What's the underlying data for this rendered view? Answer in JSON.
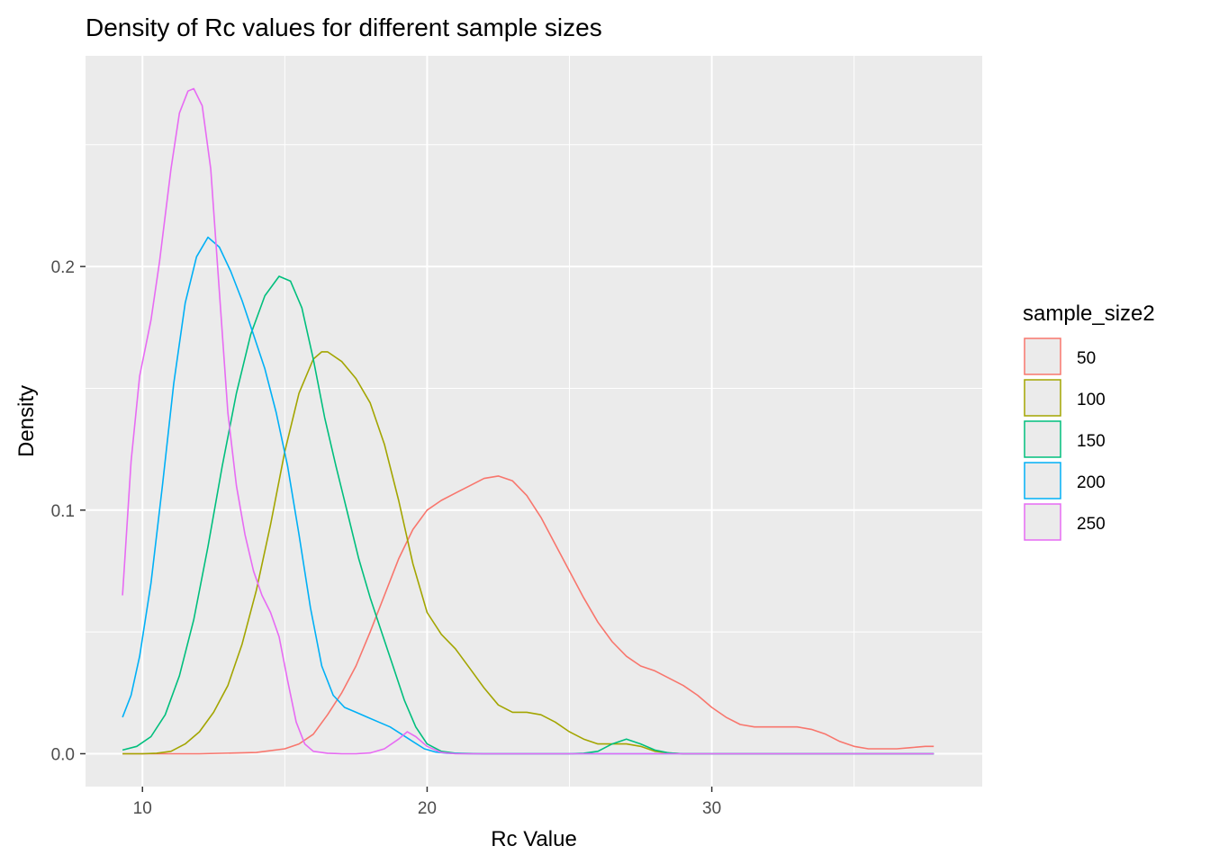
{
  "chart_data": {
    "type": "line",
    "title": "Density of Rc values for different sample sizes",
    "xlabel": "Rc Value",
    "ylabel": "Density",
    "xlim": [
      8.0,
      39.5
    ],
    "ylim": [
      -0.0135,
      0.2865
    ],
    "x_ticks": [
      10,
      20,
      30
    ],
    "x_tick_labels": [
      "10",
      "20",
      "30"
    ],
    "x_minor_ticks": [
      15,
      25,
      35
    ],
    "y_ticks": [
      0.0,
      0.1,
      0.2
    ],
    "y_tick_labels": [
      "0.0",
      "0.1",
      "0.2"
    ],
    "y_minor_ticks": [
      0.05,
      0.15,
      0.25
    ],
    "grid": true,
    "background": "#ebebeb",
    "legend": {
      "title": "sample_size2",
      "position": "right"
    },
    "series": [
      {
        "name": "50",
        "color": "#F8766D",
        "points": [
          [
            9.3,
            0
          ],
          [
            12,
            0
          ],
          [
            14,
            0.0005
          ],
          [
            15,
            0.002
          ],
          [
            15.5,
            0.004
          ],
          [
            16,
            0.008
          ],
          [
            16.5,
            0.016
          ],
          [
            17,
            0.025
          ],
          [
            17.5,
            0.036
          ],
          [
            18,
            0.05
          ],
          [
            18.5,
            0.065
          ],
          [
            19,
            0.08
          ],
          [
            19.5,
            0.092
          ],
          [
            20,
            0.1
          ],
          [
            20.5,
            0.104
          ],
          [
            21,
            0.107
          ],
          [
            21.5,
            0.11
          ],
          [
            22,
            0.113
          ],
          [
            22.5,
            0.114
          ],
          [
            23,
            0.112
          ],
          [
            23.5,
            0.106
          ],
          [
            24,
            0.097
          ],
          [
            24.5,
            0.086
          ],
          [
            25,
            0.075
          ],
          [
            25.5,
            0.064
          ],
          [
            26,
            0.054
          ],
          [
            26.5,
            0.046
          ],
          [
            27,
            0.04
          ],
          [
            27.5,
            0.036
          ],
          [
            28,
            0.034
          ],
          [
            28.5,
            0.031
          ],
          [
            29,
            0.028
          ],
          [
            29.5,
            0.024
          ],
          [
            30,
            0.019
          ],
          [
            30.5,
            0.015
          ],
          [
            31,
            0.012
          ],
          [
            31.5,
            0.011
          ],
          [
            32,
            0.011
          ],
          [
            32.5,
            0.011
          ],
          [
            33,
            0.011
          ],
          [
            33.5,
            0.01
          ],
          [
            34,
            0.008
          ],
          [
            34.5,
            0.005
          ],
          [
            35,
            0.003
          ],
          [
            35.5,
            0.002
          ],
          [
            36,
            0.002
          ],
          [
            36.5,
            0.002
          ],
          [
            37,
            0.0025
          ],
          [
            37.5,
            0.003
          ],
          [
            37.8,
            0.003
          ]
        ]
      },
      {
        "name": "100",
        "color": "#A3A500",
        "points": [
          [
            9.3,
            0
          ],
          [
            10,
            0
          ],
          [
            10.5,
            0.0002
          ],
          [
            11,
            0.001
          ],
          [
            11.5,
            0.004
          ],
          [
            12,
            0.009
          ],
          [
            12.5,
            0.017
          ],
          [
            13,
            0.028
          ],
          [
            13.5,
            0.045
          ],
          [
            14,
            0.067
          ],
          [
            14.5,
            0.094
          ],
          [
            15,
            0.124
          ],
          [
            15.5,
            0.148
          ],
          [
            16,
            0.162
          ],
          [
            16.3,
            0.165
          ],
          [
            16.5,
            0.165
          ],
          [
            17,
            0.161
          ],
          [
            17.5,
            0.154
          ],
          [
            18,
            0.144
          ],
          [
            18.5,
            0.127
          ],
          [
            19,
            0.104
          ],
          [
            19.5,
            0.078
          ],
          [
            20,
            0.058
          ],
          [
            20.5,
            0.049
          ],
          [
            21,
            0.043
          ],
          [
            21.5,
            0.035
          ],
          [
            22,
            0.027
          ],
          [
            22.5,
            0.02
          ],
          [
            23,
            0.017
          ],
          [
            23.5,
            0.017
          ],
          [
            24,
            0.016
          ],
          [
            24.5,
            0.013
          ],
          [
            25,
            0.009
          ],
          [
            25.5,
            0.006
          ],
          [
            26,
            0.004
          ],
          [
            26.5,
            0.004
          ],
          [
            27,
            0.004
          ],
          [
            27.5,
            0.003
          ],
          [
            28,
            0.001
          ],
          [
            28.5,
            0.0003
          ],
          [
            29,
            0
          ],
          [
            30,
            0
          ],
          [
            37.8,
            0
          ]
        ]
      },
      {
        "name": "150",
        "color": "#00BF7D",
        "points": [
          [
            9.3,
            0.0015
          ],
          [
            9.8,
            0.003
          ],
          [
            10.3,
            0.007
          ],
          [
            10.8,
            0.016
          ],
          [
            11.3,
            0.032
          ],
          [
            11.8,
            0.055
          ],
          [
            12.3,
            0.085
          ],
          [
            12.8,
            0.118
          ],
          [
            13.3,
            0.148
          ],
          [
            13.8,
            0.172
          ],
          [
            14.3,
            0.188
          ],
          [
            14.8,
            0.196
          ],
          [
            15.2,
            0.194
          ],
          [
            15.6,
            0.183
          ],
          [
            16,
            0.162
          ],
          [
            16.4,
            0.138
          ],
          [
            16.8,
            0.118
          ],
          [
            17.2,
            0.099
          ],
          [
            17.6,
            0.08
          ],
          [
            18,
            0.064
          ],
          [
            18.4,
            0.05
          ],
          [
            18.8,
            0.036
          ],
          [
            19.2,
            0.022
          ],
          [
            19.6,
            0.011
          ],
          [
            20,
            0.004
          ],
          [
            20.5,
            0.001
          ],
          [
            21,
            0.0002
          ],
          [
            22,
            0
          ],
          [
            25,
            0
          ],
          [
            25.5,
            0.0002
          ],
          [
            26,
            0.001
          ],
          [
            26.5,
            0.004
          ],
          [
            27,
            0.006
          ],
          [
            27.5,
            0.004
          ],
          [
            28,
            0.0015
          ],
          [
            28.5,
            0.0003
          ],
          [
            29,
            0
          ],
          [
            37.8,
            0
          ]
        ]
      },
      {
        "name": "200",
        "color": "#00B0F6",
        "points": [
          [
            9.3,
            0.015
          ],
          [
            9.6,
            0.024
          ],
          [
            9.9,
            0.04
          ],
          [
            10.3,
            0.07
          ],
          [
            10.7,
            0.11
          ],
          [
            11.1,
            0.152
          ],
          [
            11.5,
            0.185
          ],
          [
            11.9,
            0.204
          ],
          [
            12.3,
            0.212
          ],
          [
            12.7,
            0.208
          ],
          [
            13.1,
            0.198
          ],
          [
            13.5,
            0.186
          ],
          [
            13.9,
            0.172
          ],
          [
            14.3,
            0.158
          ],
          [
            14.7,
            0.14
          ],
          [
            15.1,
            0.118
          ],
          [
            15.5,
            0.09
          ],
          [
            15.9,
            0.06
          ],
          [
            16.3,
            0.036
          ],
          [
            16.7,
            0.024
          ],
          [
            17.1,
            0.019
          ],
          [
            17.5,
            0.017
          ],
          [
            17.9,
            0.015
          ],
          [
            18.3,
            0.013
          ],
          [
            18.7,
            0.011
          ],
          [
            19.1,
            0.008
          ],
          [
            19.5,
            0.005
          ],
          [
            19.9,
            0.002
          ],
          [
            20.3,
            0.0007
          ],
          [
            20.7,
            0.0002
          ],
          [
            21.5,
            0
          ],
          [
            37.8,
            0
          ]
        ]
      },
      {
        "name": "250",
        "color": "#E76BF3",
        "points": [
          [
            9.3,
            0.065
          ],
          [
            9.6,
            0.12
          ],
          [
            9.9,
            0.155
          ],
          [
            10.3,
            0.178
          ],
          [
            10.6,
            0.202
          ],
          [
            11,
            0.24
          ],
          [
            11.3,
            0.263
          ],
          [
            11.6,
            0.272
          ],
          [
            11.8,
            0.273
          ],
          [
            12.1,
            0.266
          ],
          [
            12.4,
            0.24
          ],
          [
            12.7,
            0.19
          ],
          [
            13,
            0.14
          ],
          [
            13.3,
            0.11
          ],
          [
            13.6,
            0.09
          ],
          [
            13.9,
            0.075
          ],
          [
            14.2,
            0.065
          ],
          [
            14.5,
            0.058
          ],
          [
            14.8,
            0.048
          ],
          [
            15.1,
            0.03
          ],
          [
            15.4,
            0.013
          ],
          [
            15.7,
            0.004
          ],
          [
            16,
            0.001
          ],
          [
            16.5,
            0.0002
          ],
          [
            17,
            0
          ],
          [
            17.5,
            0
          ],
          [
            18,
            0.0003
          ],
          [
            18.5,
            0.002
          ],
          [
            19,
            0.006
          ],
          [
            19.3,
            0.009
          ],
          [
            19.6,
            0.007
          ],
          [
            20,
            0.003
          ],
          [
            20.5,
            0.0005
          ],
          [
            21,
            0
          ],
          [
            37.8,
            0
          ]
        ]
      }
    ]
  }
}
